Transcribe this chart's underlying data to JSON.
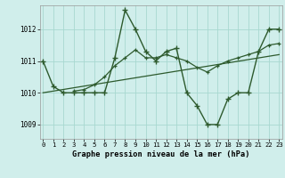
{
  "bg_color": "#d0eeeb",
  "line_color": "#2d5a2d",
  "grid_color": "#a8d8d0",
  "title": "Graphe pression niveau de la mer (hPa)",
  "xlim_min": -0.3,
  "xlim_max": 23.3,
  "ylim_min": 1008.55,
  "ylim_max": 1012.75,
  "yticks": [
    1009,
    1010,
    1011,
    1012
  ],
  "xticks": [
    0,
    1,
    2,
    3,
    4,
    5,
    6,
    7,
    8,
    9,
    10,
    11,
    12,
    13,
    14,
    15,
    16,
    17,
    18,
    19,
    20,
    21,
    22,
    23
  ],
  "line1_x": [
    0,
    1,
    2,
    3,
    4,
    5,
    6,
    7,
    8,
    9,
    10,
    11,
    12,
    13,
    14,
    15,
    16,
    17,
    18,
    19,
    20,
    21,
    22,
    23
  ],
  "line1_y": [
    1011.0,
    1010.2,
    1010.0,
    1010.0,
    1010.0,
    1010.0,
    1010.0,
    1011.1,
    1012.6,
    1012.0,
    1011.3,
    1011.0,
    1011.3,
    1011.4,
    1010.0,
    1009.6,
    1009.0,
    1009.0,
    1009.8,
    1010.0,
    1010.0,
    1011.3,
    1012.0,
    1012.0
  ],
  "line2_x": [
    3,
    4,
    5,
    6,
    7,
    8,
    9,
    10,
    11,
    12,
    13,
    14,
    15,
    16,
    17,
    18,
    19,
    20,
    21,
    22,
    23
  ],
  "line2_y": [
    1010.05,
    1010.1,
    1010.25,
    1010.5,
    1010.85,
    1011.1,
    1011.35,
    1011.1,
    1011.1,
    1011.2,
    1011.1,
    1011.0,
    1010.8,
    1010.65,
    1010.85,
    1011.0,
    1011.1,
    1011.2,
    1011.3,
    1011.5,
    1011.55
  ],
  "line3_x": [
    0,
    23
  ],
  "line3_y": [
    1010.0,
    1011.2
  ]
}
